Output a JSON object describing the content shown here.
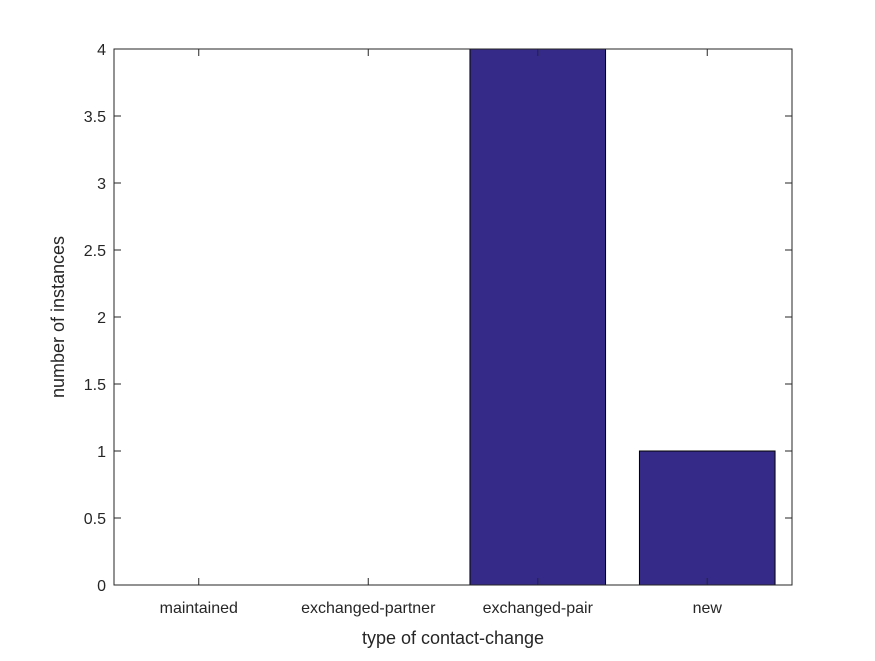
{
  "chart_data": {
    "type": "bar",
    "categories": [
      "maintained",
      "exchanged-partner",
      "exchanged-pair",
      "new"
    ],
    "values": [
      0,
      0,
      4,
      1
    ],
    "title": "",
    "xlabel": "type of contact-change",
    "ylabel": "number of instances",
    "ylim": [
      0,
      4
    ],
    "yticks": [
      "0",
      "0.5",
      "1",
      "1.5",
      "2",
      "2.5",
      "3",
      "3.5",
      "4"
    ],
    "grid": false,
    "bar_color": "#352a87"
  }
}
